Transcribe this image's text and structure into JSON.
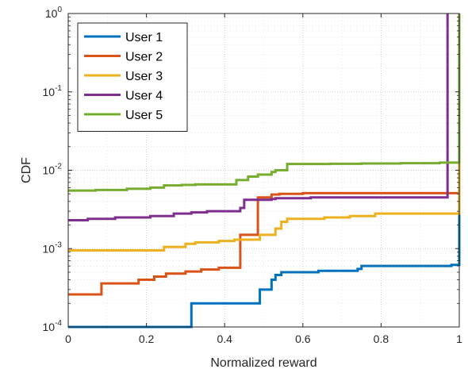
{
  "chart_data": {
    "type": "line",
    "step": true,
    "title": "",
    "xlabel": "Normalized reward",
    "ylabel": "CDF",
    "xlim": [
      0,
      1
    ],
    "ylim": [
      0.0001,
      1
    ],
    "yscale": "log",
    "grid": "major and minor, dotted",
    "legend_position": "top-left",
    "x_ticks": [
      0,
      0.2,
      0.4,
      0.6,
      0.8,
      1
    ],
    "x_tick_labels": [
      "0",
      "0.2",
      "0.4",
      "0.6",
      "0.8",
      "1"
    ],
    "y_ticks": [
      0.0001,
      0.001,
      0.01,
      0.1,
      1
    ],
    "y_tick_labels": [
      {
        "base": "10",
        "exp": "-4"
      },
      {
        "base": "10",
        "exp": "-3"
      },
      {
        "base": "10",
        "exp": "-2"
      },
      {
        "base": "10",
        "exp": "-1"
      },
      {
        "base": "10",
        "exp": "0"
      }
    ],
    "series": [
      {
        "name": "User 1",
        "color": "#0072BD",
        "x": [
          0,
          0.315,
          0.48,
          0.49,
          0.52,
          0.53,
          0.545,
          0.56,
          0.64,
          0.74,
          0.75,
          0.98,
          1.0,
          1.0
        ],
        "y": [
          0.0001,
          0.0002,
          0.0002,
          0.0003,
          0.0004,
          0.00046,
          0.0005,
          0.0005,
          0.00052,
          0.00055,
          0.0006,
          0.00062,
          0.0025,
          1
        ]
      },
      {
        "name": "User 2",
        "color": "#D95319",
        "x": [
          0,
          0.07,
          0.085,
          0.18,
          0.22,
          0.25,
          0.3,
          0.34,
          0.385,
          0.44,
          0.45,
          0.475,
          0.485,
          0.52,
          0.54,
          0.6,
          1.0,
          1.0
        ],
        "y": [
          0.00026,
          0.00026,
          0.00036,
          0.0004,
          0.00044,
          0.00048,
          0.00051,
          0.00054,
          0.00057,
          0.0015,
          0.0015,
          0.0015,
          0.0045,
          0.0049,
          0.005,
          0.0051,
          0.0052,
          1
        ]
      },
      {
        "name": "User 3",
        "color": "#EDB120",
        "x": [
          0,
          0.23,
          0.245,
          0.3,
          0.325,
          0.385,
          0.425,
          0.485,
          0.49,
          0.53,
          0.545,
          0.56,
          0.655,
          0.72,
          0.785,
          1.0,
          1.0
        ],
        "y": [
          0.00095,
          0.00095,
          0.00105,
          0.00115,
          0.0012,
          0.00125,
          0.0013,
          0.0013,
          0.0015,
          0.0018,
          0.0022,
          0.0024,
          0.0025,
          0.0026,
          0.0028,
          0.0028,
          1
        ]
      },
      {
        "name": "User 4",
        "color": "#7E2F8E",
        "x": [
          0,
          0.05,
          0.12,
          0.21,
          0.27,
          0.315,
          0.355,
          0.38,
          0.44,
          0.45,
          0.485,
          0.505,
          0.52,
          0.53,
          0.56,
          0.62,
          0.65,
          0.74,
          0.97,
          0.97
        ],
        "y": [
          0.0023,
          0.0024,
          0.0025,
          0.0026,
          0.0028,
          0.0029,
          0.003,
          0.003,
          0.0033,
          0.0042,
          0.0042,
          0.0042,
          0.0043,
          0.0044,
          0.0044,
          0.0045,
          0.0045,
          0.0045,
          0.0048,
          1
        ]
      },
      {
        "name": "User 5",
        "color": "#77AC30",
        "x": [
          0,
          0.07,
          0.15,
          0.21,
          0.245,
          0.29,
          0.325,
          0.43,
          0.46,
          0.485,
          0.52,
          0.53,
          0.56,
          0.67,
          0.75,
          0.85,
          0.95,
          1.0,
          1.0
        ],
        "y": [
          0.0055,
          0.0056,
          0.0058,
          0.006,
          0.0064,
          0.0065,
          0.0066,
          0.0075,
          0.0083,
          0.0088,
          0.0095,
          0.01,
          0.012,
          0.0121,
          0.0122,
          0.0123,
          0.0125,
          0.0125,
          1
        ]
      }
    ]
  }
}
